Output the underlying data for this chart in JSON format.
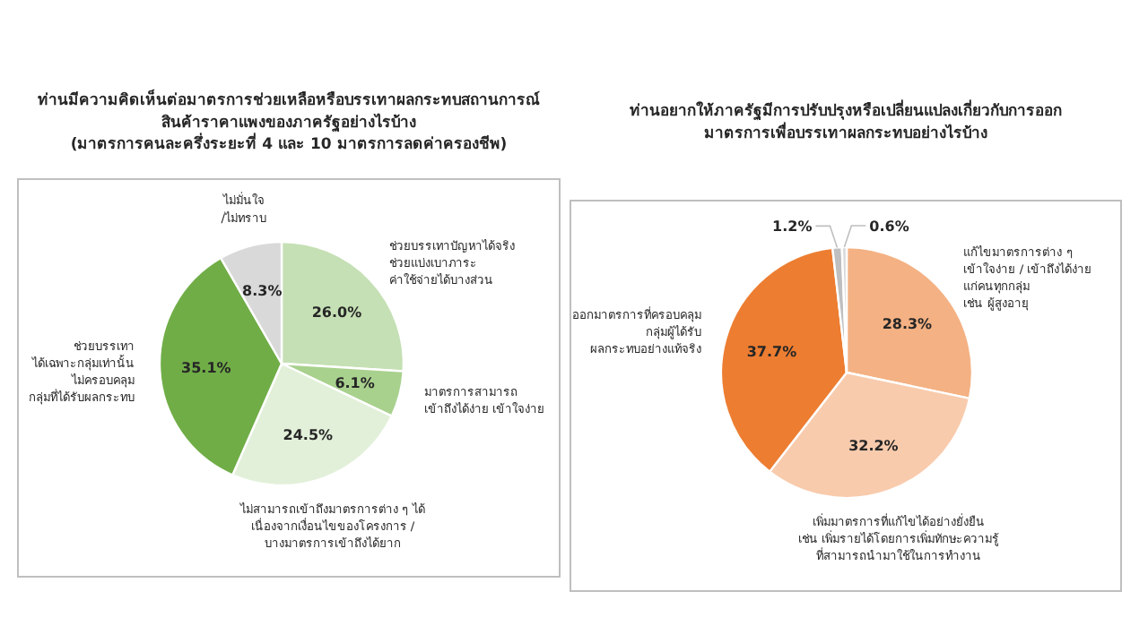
{
  "chart_data": [
    {
      "type": "pie",
      "title": "ท่านมีความคิดเห็นต่อมาตรการช่วยเหลือหรือบรรเทาผลกระทบสถานการณ์\nสินค้าราคาแพงของภาครัฐอย่างไรบ้าง\n(มาตรการคนละครึ่งระยะที่ 4 และ 10 มาตรการลดค่าครองชีพ)",
      "value_labels": [
        "26.0%",
        "6.1%",
        "24.5%",
        "35.1%",
        "8.3%"
      ],
      "categories": [
        "ช่วยบรรเทาปัญหาได้จริง\nช่วยแบ่งเบาภาระ\nค่าใช้จ่ายได้บางส่วน",
        "มาตรการสามารถ\nเข้าถึงได้ง่าย เข้าใจง่าย",
        "ไม่สามารถเข้าถึงมาตรการต่าง ๆ ได้\nเนื่องจากเงื่อนไขของโครงการ /\nบางมาตรการเข้าถึงได้ยาก",
        "ช่วยบรรเทา\nได้เฉพาะกลุ่มเท่านั้น\nไม่ครอบคลุม\nกลุ่มที่ได้รับผลกระทบ",
        "ไม่มั่นใจ\n/ไม่ทราบ"
      ],
      "values": [
        26.0,
        6.1,
        24.5,
        35.1,
        8.3
      ],
      "colors": [
        "#c5e0b4",
        "#a9d18e",
        "#e2f0d9",
        "#70ad47",
        "#d9d9d9"
      ]
    },
    {
      "type": "pie",
      "title": "ท่านอยากให้ภาครัฐมีการปรับปรุงหรือเปลี่ยนแปลงเกี่ยวกับการออก\nมาตรการเพื่อบรรเทาผลกระทบอย่างไรบ้าง",
      "value_labels": [
        "28.3%",
        "32.2%",
        "37.7%",
        "1.2%",
        "0.6%"
      ],
      "categories": [
        "แก้ไขมาตรการต่าง ๆ\nเข้าใจง่าย / เข้าถึงได้ง่าย\nแก่คนทุกกลุ่ม\nเช่น ผู้สูงอายุ",
        "เพิ่มมาตรการที่แก้ไขได้อย่างยั่งยืน\nเช่น เพิ่มรายได้โดยการเพิ่มทักษะความรู้\nที่สามารถนำมาใช้ในการทำงาน",
        "ออกมาตรการที่ครอบคลุม\nกลุ่มผู้ได้รับ\nผลกระทบอย่างแท้จริง",
        null,
        null
      ],
      "values": [
        28.3,
        32.2,
        37.7,
        1.2,
        0.6
      ],
      "colors": [
        "#f4b183",
        "#f8cbad",
        "#ed7d31",
        "#bfbfbf",
        "#d9d9d9"
      ]
    }
  ]
}
